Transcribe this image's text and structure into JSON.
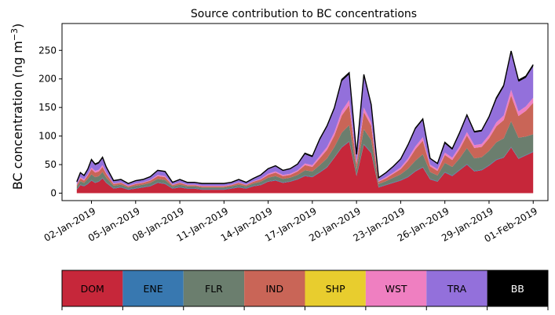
{
  "chart_data": {
    "type": "area",
    "stacked": true,
    "title": "Source contribution to BC concentrations",
    "ylabel": "BC concentration (ng m",
    "ylabel_sup": "−3",
    "ylabel_close": ")",
    "ylim": [
      -13,
      297
    ],
    "yticks": [
      0,
      50,
      100,
      150,
      200,
      250
    ],
    "ytick_labels": [
      "0",
      "50",
      "100",
      "150",
      "200",
      "250"
    ],
    "xlim_days": [
      -1.0,
      32.0
    ],
    "xticks_days": [
      1,
      4,
      7,
      10,
      13,
      16,
      19,
      22,
      25,
      28,
      31
    ],
    "xtick_labels": [
      "02-Jan-2019",
      "05-Jan-2019",
      "08-Jan-2019",
      "11-Jan-2019",
      "14-Jan-2019",
      "17-Jan-2019",
      "20-Jan-2019",
      "23-Jan-2019",
      "26-Jan-2019",
      "29-Jan-2019",
      "01-Feb-2019"
    ],
    "x_days": [
      0.0,
      0.25,
      0.5,
      0.75,
      1.0,
      1.25,
      1.5,
      1.75,
      2.0,
      2.5,
      3.0,
      3.5,
      4.0,
      4.5,
      5.0,
      5.5,
      6.0,
      6.5,
      7.0,
      7.5,
      8.0,
      8.5,
      9.0,
      9.5,
      10.0,
      10.5,
      11.0,
      11.5,
      12.0,
      12.5,
      13.0,
      13.5,
      14.0,
      14.5,
      15.0,
      15.5,
      16.0,
      16.5,
      17.0,
      17.5,
      18.0,
      18.5,
      19.0,
      19.5,
      20.0,
      20.5,
      21.0,
      21.5,
      22.0,
      22.5,
      23.0,
      23.5,
      24.0,
      24.5,
      25.0,
      25.5,
      26.0,
      26.5,
      27.0,
      27.5,
      28.0,
      28.5,
      29.0,
      29.5,
      30.0,
      30.5,
      31.0
    ],
    "series": [
      {
        "name": "DOM",
        "color": "#c6273a",
        "values": [
          6,
          14,
          12,
          16,
          22,
          18,
          20,
          26,
          18,
          8,
          10,
          6,
          8,
          10,
          12,
          18,
          16,
          8,
          10,
          8,
          8,
          6,
          6,
          6,
          6,
          8,
          10,
          8,
          12,
          14,
          20,
          22,
          18,
          20,
          24,
          30,
          28,
          36,
          45,
          62,
          80,
          90,
          30,
          85,
          70,
          10,
          14,
          18,
          22,
          28,
          38,
          45,
          24,
          20,
          36,
          30,
          40,
          50,
          38,
          40,
          48,
          58,
          62,
          80,
          60,
          66,
          72
        ]
      },
      {
        "name": "ENE",
        "color": "#3878b0",
        "values": [
          1,
          1,
          1,
          1,
          1,
          1,
          1,
          1,
          1,
          1,
          1,
          1,
          1,
          1,
          1,
          1,
          1,
          1,
          1,
          1,
          1,
          1,
          1,
          1,
          1,
          1,
          1,
          1,
          1,
          1,
          1,
          1,
          1,
          1,
          1,
          1,
          1,
          1,
          1,
          1,
          1,
          1,
          1,
          1,
          1,
          1,
          1,
          1,
          1,
          1,
          1,
          1,
          1,
          1,
          1,
          1,
          1,
          1,
          1,
          1,
          1,
          1,
          1,
          1,
          1,
          1,
          1
        ]
      },
      {
        "name": "FLR",
        "color": "#6b7e6e",
        "values": [
          4,
          6,
          5,
          8,
          10,
          9,
          9,
          10,
          8,
          4,
          4,
          3,
          4,
          4,
          5,
          6,
          6,
          3,
          4,
          3,
          3,
          3,
          3,
          3,
          3,
          3,
          4,
          3,
          4,
          5,
          6,
          7,
          6,
          6,
          7,
          9,
          9,
          12,
          15,
          18,
          25,
          28,
          10,
          26,
          22,
          5,
          6,
          8,
          10,
          14,
          18,
          22,
          12,
          10,
          16,
          15,
          20,
          28,
          22,
          22,
          25,
          30,
          33,
          45,
          36,
          32,
          30
        ]
      },
      {
        "name": "IND",
        "color": "#c96557",
        "values": [
          3,
          5,
          4,
          6,
          9,
          8,
          8,
          9,
          7,
          3,
          3,
          2,
          3,
          3,
          4,
          5,
          5,
          2,
          3,
          2,
          2,
          2,
          2,
          2,
          2,
          2,
          3,
          2,
          3,
          4,
          5,
          6,
          5,
          5,
          6,
          9,
          8,
          12,
          15,
          20,
          30,
          35,
          10,
          30,
          25,
          4,
          5,
          7,
          9,
          14,
          20,
          24,
          10,
          8,
          14,
          12,
          16,
          22,
          18,
          18,
          22,
          28,
          32,
          45,
          38,
          45,
          55
        ]
      },
      {
        "name": "SHP",
        "color": "#e8cd2e",
        "values": [
          0,
          0,
          0,
          0,
          0,
          0,
          0,
          0,
          0,
          0,
          0,
          0,
          0,
          0,
          0,
          0,
          0,
          0,
          0,
          0,
          0,
          0,
          0,
          0,
          0,
          0,
          0,
          0,
          0,
          0,
          0,
          0,
          0,
          0,
          0,
          0,
          0,
          0,
          0,
          0,
          0,
          0,
          0,
          0,
          0,
          0,
          0,
          0,
          0,
          0,
          0,
          0,
          0,
          0,
          0,
          0,
          0,
          0,
          0,
          0,
          0,
          0,
          0,
          0,
          0,
          0,
          0
        ]
      },
      {
        "name": "WST",
        "color": "#ef7fc1",
        "values": [
          1,
          2,
          2,
          2,
          3,
          3,
          3,
          3,
          2,
          1,
          1,
          1,
          1,
          1,
          1,
          2,
          2,
          1,
          1,
          1,
          1,
          1,
          1,
          1,
          1,
          1,
          1,
          1,
          1,
          1,
          2,
          2,
          2,
          2,
          2,
          3,
          3,
          4,
          5,
          6,
          8,
          9,
          3,
          8,
          6,
          1,
          2,
          2,
          3,
          4,
          5,
          6,
          3,
          3,
          4,
          4,
          5,
          6,
          5,
          5,
          6,
          7,
          8,
          10,
          8,
          8,
          9
        ]
      },
      {
        "name": "TRA",
        "color": "#9370db",
        "values": [
          4,
          7,
          6,
          8,
          12,
          10,
          11,
          12,
          9,
          4,
          4,
          3,
          4,
          4,
          5,
          7,
          7,
          3,
          4,
          3,
          3,
          3,
          3,
          3,
          3,
          3,
          4,
          3,
          4,
          6,
          8,
          9,
          7,
          8,
          10,
          16,
          14,
          28,
          35,
          40,
          52,
          45,
          12,
          55,
          28,
          5,
          7,
          10,
          14,
          22,
          30,
          30,
          10,
          9,
          16,
          14,
          22,
          28,
          22,
          22,
          30,
          40,
          50,
          65,
          52,
          50,
          55
        ]
      },
      {
        "name": "BB",
        "color": "#000000",
        "values": [
          1,
          1,
          1,
          1,
          2,
          2,
          2,
          2,
          1,
          1,
          1,
          1,
          1,
          1,
          1,
          1,
          1,
          1,
          1,
          1,
          1,
          1,
          1,
          1,
          1,
          1,
          1,
          1,
          1,
          1,
          1,
          1,
          1,
          1,
          1,
          2,
          2,
          2,
          2,
          3,
          3,
          3,
          2,
          3,
          3,
          1,
          1,
          1,
          1,
          2,
          2,
          2,
          1,
          1,
          2,
          2,
          2,
          2,
          2,
          2,
          2,
          3,
          3,
          3,
          3,
          3,
          3
        ]
      }
    ],
    "legend_position": "bottom",
    "legend_text_colors": {
      "DOM": "#000000",
      "ENE": "#000000",
      "FLR": "#000000",
      "IND": "#000000",
      "SHP": "#000000",
      "WST": "#000000",
      "TRA": "#000000",
      "BB": "#ffffff"
    }
  }
}
